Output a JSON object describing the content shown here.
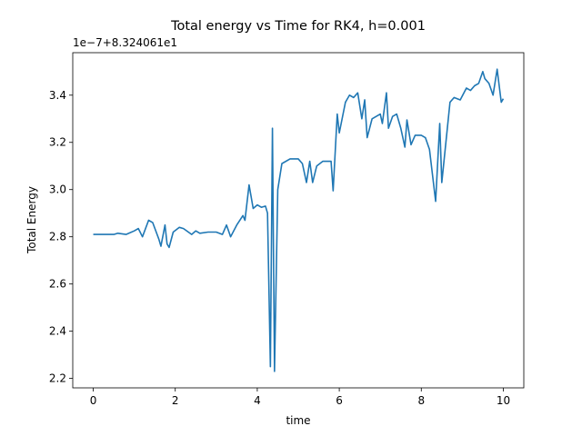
{
  "chart_data": {
    "type": "line",
    "title": "Total energy vs Time for RK4, h=0.001",
    "offset_text": "1e−7+8.324061e1",
    "x_label": "time",
    "y_label": "Total Energy",
    "xlim": [
      -0.5,
      10.5
    ],
    "ylim": [
      2.16,
      3.58
    ],
    "xticks": [
      0,
      2,
      4,
      6,
      8,
      10
    ],
    "yticks": [
      2.2,
      2.4,
      2.6,
      2.8,
      {
        "value": 3,
        "label": "3.0"
      },
      3.2,
      3.4
    ],
    "series": [
      {
        "color": "#1f77b4",
        "x": [
          0,
          0.5,
          0.6,
          0.8,
          1.0,
          1.1,
          1.2,
          1.35,
          1.45,
          1.6,
          1.65,
          1.75,
          1.8,
          1.85,
          1.95,
          2.1,
          2.2,
          2.4,
          2.5,
          2.6,
          2.8,
          3.0,
          3.15,
          3.25,
          3.35,
          3.5,
          3.65,
          3.7,
          3.8,
          3.9,
          4.0,
          4.1,
          4.2,
          4.25,
          4.32,
          4.37,
          4.42,
          4.5,
          4.6,
          4.8,
          5.0,
          5.1,
          5.2,
          5.28,
          5.35,
          5.45,
          5.6,
          5.8,
          5.85,
          5.95,
          6.0,
          6.15,
          6.25,
          6.35,
          6.45,
          6.55,
          6.62,
          6.68,
          6.8,
          6.9,
          7.0,
          7.05,
          7.15,
          7.2,
          7.3,
          7.4,
          7.5,
          7.6,
          7.65,
          7.75,
          7.85,
          8.0,
          8.1,
          8.2,
          8.35,
          8.45,
          8.5,
          8.6,
          8.7,
          8.8,
          8.95,
          9.1,
          9.2,
          9.3,
          9.4,
          9.5,
          9.55,
          9.65,
          9.75,
          9.85,
          9.95,
          10.0
        ],
        "values": [
          2.81,
          2.81,
          2.815,
          2.81,
          2.825,
          2.835,
          2.8,
          2.87,
          2.86,
          2.79,
          2.76,
          2.85,
          2.77,
          2.755,
          2.82,
          2.84,
          2.835,
          2.81,
          2.825,
          2.815,
          2.82,
          2.82,
          2.81,
          2.85,
          2.8,
          2.85,
          2.89,
          2.87,
          3.02,
          2.92,
          2.935,
          2.925,
          2.93,
          2.9,
          2.25,
          3.26,
          2.23,
          3.0,
          3.11,
          3.13,
          3.13,
          3.11,
          3.03,
          3.12,
          3.03,
          3.1,
          3.12,
          3.12,
          2.995,
          3.32,
          3.24,
          3.37,
          3.4,
          3.39,
          3.41,
          3.3,
          3.38,
          3.22,
          3.3,
          3.31,
          3.32,
          3.28,
          3.41,
          3.26,
          3.31,
          3.32,
          3.26,
          3.18,
          3.295,
          3.19,
          3.23,
          3.23,
          3.22,
          3.17,
          2.95,
          3.28,
          3.03,
          3.2,
          3.37,
          3.39,
          3.38,
          3.43,
          3.42,
          3.44,
          3.45,
          3.5,
          3.47,
          3.45,
          3.4,
          3.51,
          3.37,
          3.385
        ]
      }
    ]
  }
}
